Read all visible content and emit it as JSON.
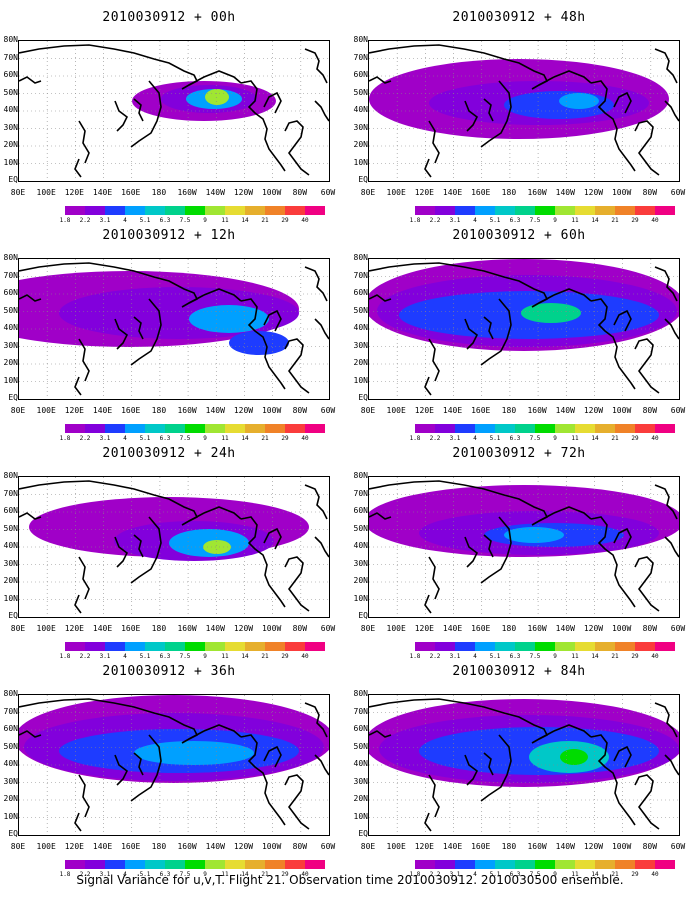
{
  "panels": [
    {
      "title": "2010030912 + 00h",
      "stage": 0
    },
    {
      "title": "2010030912 + 48h",
      "stage": 4
    },
    {
      "title": "2010030912 + 12h",
      "stage": 1
    },
    {
      "title": "2010030912 + 60h",
      "stage": 5
    },
    {
      "title": "2010030912 + 24h",
      "stage": 2
    },
    {
      "title": "2010030912 + 72h",
      "stage": 6
    },
    {
      "title": "2010030912 + 36h",
      "stage": 3
    },
    {
      "title": "2010030912 + 84h",
      "stage": 7
    }
  ],
  "lat_labels": [
    "80N",
    "70N",
    "60N",
    "50N",
    "40N",
    "30N",
    "20N",
    "10N",
    "EQ"
  ],
  "lon_labels": [
    "80E",
    "100E",
    "120E",
    "140E",
    "160E",
    "180",
    "160W",
    "140W",
    "120W",
    "100W",
    "80W",
    "60W"
  ],
  "colorbar": {
    "levels": [
      "1.8",
      "2.2",
      "3.1",
      "4",
      "5.1",
      "6.3",
      "7.5",
      "9",
      "11",
      "14",
      "21",
      "29",
      "40"
    ],
    "colors": [
      "#a000c8",
      "#8200dc",
      "#1e3cff",
      "#00a0ff",
      "#00c8c8",
      "#00d28c",
      "#00dc00",
      "#a0e632",
      "#e6dc32",
      "#e6af2d",
      "#f08228",
      "#fa3c3c",
      "#f00082"
    ]
  },
  "caption": "Signal Variance for u,v,T. Flight 21. Observation time 2010030912. 2010030500 ensemble."
}
